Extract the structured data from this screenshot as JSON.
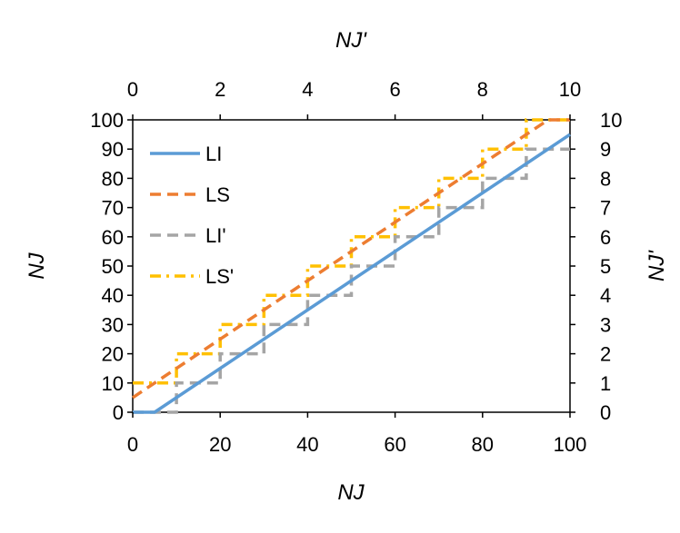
{
  "chart_data": {
    "type": "line",
    "xlabel": "NJ",
    "ylabel": "NJ",
    "x2label": "NJ'",
    "y2label": "NJ'",
    "xlim": [
      0,
      100
    ],
    "ylim": [
      0,
      100
    ],
    "x2lim": [
      0,
      10
    ],
    "y2lim": [
      0,
      10
    ],
    "x_ticks": [
      "0",
      "20",
      "40",
      "60",
      "80",
      "100"
    ],
    "y_ticks": [
      "0",
      "10",
      "20",
      "30",
      "40",
      "50",
      "60",
      "70",
      "80",
      "90",
      "100"
    ],
    "x2_ticks": [
      "0",
      "2",
      "4",
      "6",
      "8",
      "10"
    ],
    "y2_ticks": [
      "0",
      "1",
      "2",
      "3",
      "4",
      "5",
      "6",
      "7",
      "8",
      "9",
      "10"
    ],
    "grid": false,
    "legend_position": "top-left",
    "series": [
      {
        "name": "LI",
        "color": "#5B9BD5",
        "style": "solid",
        "x": [
          0,
          5,
          100
        ],
        "y": [
          0,
          0,
          95
        ]
      },
      {
        "name": "LS",
        "color": "#ED7D31",
        "style": "dashed",
        "x": [
          0,
          95,
          100
        ],
        "y": [
          5,
          100,
          100
        ]
      },
      {
        "name": "LI'",
        "color": "#A5A5A5",
        "style": "dashed",
        "x": [
          0,
          10,
          10,
          20,
          20,
          30,
          30,
          40,
          40,
          50,
          50,
          60,
          60,
          70,
          70,
          80,
          80,
          90,
          90,
          100
        ],
        "y": [
          0,
          0,
          10,
          10,
          20,
          20,
          30,
          30,
          40,
          40,
          50,
          50,
          60,
          60,
          70,
          70,
          80,
          80,
          90,
          90
        ]
      },
      {
        "name": "LS'",
        "color": "#FFC000",
        "style": "dashdot",
        "x": [
          0,
          10,
          10,
          20,
          20,
          30,
          30,
          40,
          40,
          50,
          50,
          60,
          60,
          70,
          70,
          80,
          80,
          90,
          90,
          100
        ],
        "y": [
          10,
          10,
          20,
          20,
          30,
          30,
          40,
          40,
          50,
          50,
          60,
          60,
          70,
          70,
          80,
          80,
          90,
          90,
          100,
          100
        ]
      }
    ]
  }
}
